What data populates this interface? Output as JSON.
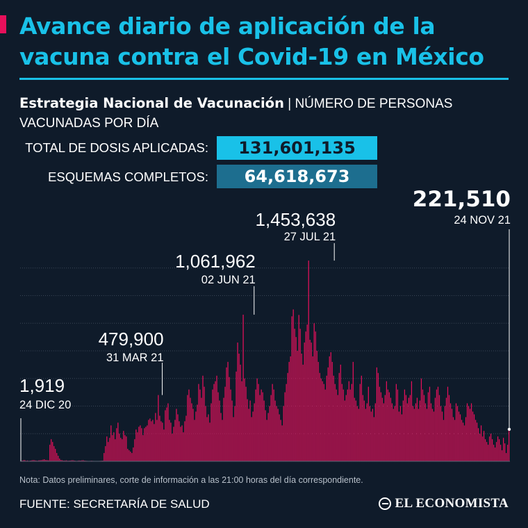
{
  "header": {
    "title": "Avance diario de aplicación de la vacuna contra el Covid-19 en México",
    "subtitle_bold": "Estrategia Nacional de Vacunación",
    "subtitle_rest": " | NÚMERO DE PERSONAS VACUNADAS POR DÍA"
  },
  "stats": {
    "total_label": "TOTAL DE DOSIS APLICADAS:",
    "total_value": "131,601,135",
    "complete_label": "ESQUEMAS COMPLETOS:",
    "complete_value": "64,618,673"
  },
  "chart_data": {
    "type": "bar",
    "title": "",
    "xlabel": "",
    "ylabel": "",
    "ylim": [
      0,
      1600000
    ],
    "x_range": [
      "2020-12-24",
      "2021-11-24"
    ],
    "grid": true,
    "color": "#e6105b",
    "annotations": [
      {
        "value": "1,919",
        "date": "24 DIC 20",
        "y": 1919
      },
      {
        "value": "479,900",
        "date": "31 MAR 21",
        "y": 479900
      },
      {
        "value": "1,061,962",
        "date": "02 JUN 21",
        "y": 1061962
      },
      {
        "value": "1,453,638",
        "date": "27 JUL 21",
        "y": 1453638
      },
      {
        "value": "221,510",
        "date": "24 NOV 21",
        "y": 221510
      }
    ],
    "series": [
      {
        "values": [
          1919,
          5000,
          8000,
          9000,
          4000,
          6000,
          3000,
          5000,
          7000,
          9000,
          8000,
          6000,
          4000,
          7000,
          8000,
          9000,
          12000,
          15000,
          10000,
          9000,
          8000,
          120000,
          160000,
          140000,
          110000,
          90000,
          60000,
          40000,
          20000,
          10000,
          8000,
          5000,
          6000,
          7000,
          4000,
          5000,
          6000,
          8000,
          7000,
          5000,
          3000,
          4000,
          6000,
          5000,
          7000,
          8000,
          5000,
          4000,
          3000,
          2000,
          3000,
          4000,
          3000,
          2000,
          1000,
          1500,
          2500,
          3000,
          4000,
          5000,
          60000,
          110000,
          180000,
          140000,
          170000,
          260000,
          190000,
          210000,
          160000,
          240000,
          280000,
          200000,
          170000,
          160000,
          220000,
          190000,
          180000,
          90000,
          80000,
          70000,
          60000,
          100000,
          160000,
          230000,
          210000,
          250000,
          260000,
          240000,
          190000,
          240000,
          250000,
          260000,
          300000,
          310000,
          290000,
          300000,
          270000,
          350000,
          300000,
          479900,
          330000,
          290000,
          280000,
          230000,
          370000,
          390000,
          420000,
          300000,
          280000,
          200000,
          250000,
          300000,
          380000,
          340000,
          290000,
          250000,
          260000,
          210000,
          290000,
          330000,
          480000,
          520000,
          460000,
          420000,
          380000,
          300000,
          360000,
          410000,
          560000,
          520000,
          460000,
          620000,
          540000,
          400000,
          320000,
          340000,
          280000,
          420000,
          520000,
          560000,
          580000,
          620000,
          500000,
          440000,
          350000,
          300000,
          460000,
          540000,
          680000,
          720000,
          610000,
          520000,
          440000,
          320000,
          400000,
          650000,
          860000,
          780000,
          700000,
          580000,
          1061962,
          600000,
          540000,
          450000,
          380000,
          440000,
          320000,
          360000,
          420000,
          520000,
          600000,
          560000,
          480000,
          520000,
          500000,
          440000,
          370000,
          300000,
          350000,
          400000,
          480000,
          560000,
          520000,
          440000,
          400000,
          380000,
          340000,
          300000,
          260000,
          400000,
          500000,
          560000,
          640000,
          720000,
          760000,
          1050000,
          1100000,
          960000,
          900000,
          800000,
          1060000,
          960000,
          780000,
          700000,
          860000,
          940000,
          990000,
          1453638,
          880000,
          860000,
          760000,
          1000000,
          940000,
          800000,
          720000,
          640000,
          600000,
          580000,
          560000,
          520000,
          620000,
          680000,
          760000,
          790000,
          720000,
          620000,
          560000,
          520000,
          480000,
          640000,
          700000,
          560000,
          520000,
          440000,
          480000,
          520000,
          580000,
          520000,
          560000,
          720000,
          460000,
          440000,
          400000,
          380000,
          560000,
          620000,
          480000,
          440000,
          380000,
          420000,
          540000,
          400000,
          360000,
          380000,
          320000,
          420000,
          680000,
          640000,
          540000,
          500000,
          460000,
          420000,
          480000,
          580000,
          520000,
          500000,
          460000,
          420000,
          380000,
          400000,
          560000,
          520000,
          360000,
          400000,
          340000,
          440000,
          520000,
          480000,
          420000,
          460000,
          480000,
          580000,
          400000,
          380000,
          420000,
          460000,
          380000,
          440000,
          600000,
          520000,
          480000,
          420000,
          380000,
          500000,
          540000,
          420000,
          380000,
          360000,
          460000,
          520000,
          540000,
          480000,
          400000,
          360000,
          300000,
          400000,
          460000,
          540000,
          480000,
          420000,
          380000,
          320000,
          300000,
          420000,
          400000,
          360000,
          340000,
          300000,
          280000,
          260000,
          320000,
          420000,
          400000,
          380000,
          420000,
          360000,
          340000,
          300000,
          280000,
          240000,
          200000,
          260000,
          180000,
          220000,
          160000,
          140000,
          120000,
          180000,
          200000,
          160000,
          120000,
          100000,
          140000,
          180000,
          160000,
          120000,
          80000,
          170000,
          130000,
          60000,
          120000,
          221510
        ]
      }
    ]
  },
  "footer": {
    "note": "Nota: Datos preliminares, corte de información a las 21:00 horas del día correspondiente.",
    "source": "FUENTE: SECRETARÍA DE SALUD",
    "logo_text": "EL ECONOMISTA"
  },
  "colors": {
    "background": "#0f1b2a",
    "accent": "#19c1e8",
    "bars": "#e6105b",
    "box_dark": "#1d6e8f"
  }
}
